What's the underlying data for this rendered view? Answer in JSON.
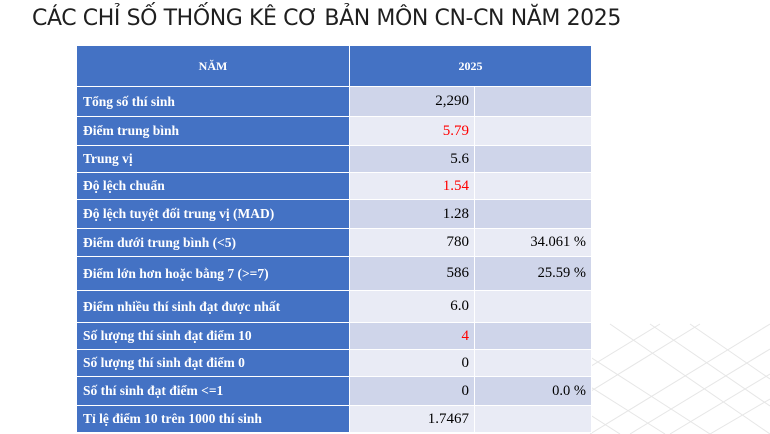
{
  "title": "CÁC CHỈ SỐ THỐNG KÊ CƠ BẢN MÔN CN-CN NĂM 2025",
  "table": {
    "headers": [
      "NĂM",
      "2025"
    ],
    "rows": [
      {
        "label": "Tổng số thí sinh",
        "value": "2,290",
        "percent": "",
        "highlight": false
      },
      {
        "label": "Điểm trung bình",
        "value": "5.79",
        "percent": "",
        "highlight": true
      },
      {
        "label": "Trung vị",
        "value": "5.6",
        "percent": "",
        "highlight": false
      },
      {
        "label": "Độ lệch chuẩn",
        "value": "1.54",
        "percent": "",
        "highlight": true
      },
      {
        "label": "Độ lệch tuyệt đối trung vị (MAD)",
        "value": "1.28",
        "percent": "",
        "highlight": false
      },
      {
        "label": "Điểm dưới trung bình (<5)",
        "value": "780",
        "percent": "34.061 %",
        "highlight": false
      },
      {
        "label": "Điểm lớn hơn hoặc bằng 7 (>=7)",
        "value": "586",
        "percent": "25.59 %",
        "highlight": false
      },
      {
        "label": "Điểm nhiều thí sinh đạt được nhất",
        "value": "6.0",
        "percent": "",
        "highlight": false
      },
      {
        "label": "Số lượng thí sinh đạt điểm 10",
        "value": "4",
        "percent": "",
        "highlight": true
      },
      {
        "label": "Số lượng thí sinh đạt điểm 0",
        "value": "0",
        "percent": "",
        "highlight": false
      },
      {
        "label": "Số thí sinh đạt điểm <=1",
        "value": "0",
        "percent": "0.0 %",
        "highlight": false
      },
      {
        "label": "Tỉ lệ điểm 10 trên 1000 thí sinh",
        "value": "1.7467",
        "percent": "",
        "highlight": false
      }
    ]
  },
  "colors": {
    "header_bg": "#4472c4",
    "row_odd": "#cfd5ea",
    "row_even": "#e9ebf5",
    "highlight_text": "#ff0000"
  }
}
